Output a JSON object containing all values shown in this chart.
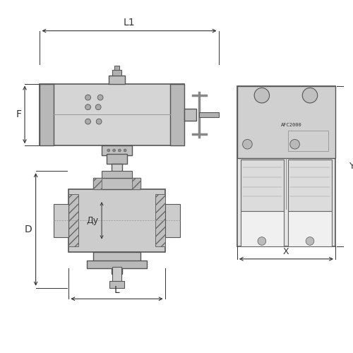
{
  "bg_color": "#ffffff",
  "line_color": "#555555",
  "dark_color": "#333333",
  "light_gray": "#cccccc",
  "mid_gray": "#999999",
  "label_L1": "L1",
  "label_F": "F",
  "label_D": "D",
  "label_Dy": "Ду",
  "label_L": "L",
  "label_X": "X",
  "label_Y": "Y",
  "label_AFC": "AFC2000"
}
